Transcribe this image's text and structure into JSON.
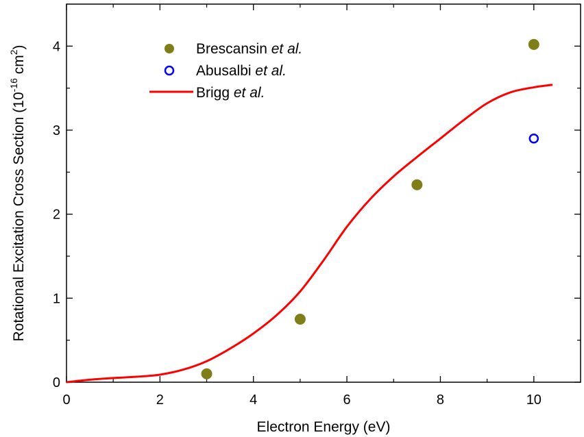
{
  "chart_data": {
    "type": "scatter",
    "xlabel": "Electron Energy (eV)",
    "ylabel": {
      "prefix": "Rotational Excitation Cross Section (10",
      "exp1": "-16",
      "mid": " cm",
      "exp2": "2",
      "suffix": ")"
    },
    "xlim": [
      0,
      11
    ],
    "ylim": [
      0,
      4.5
    ],
    "xticks": [
      0,
      2,
      4,
      6,
      8,
      10
    ],
    "yticks": [
      0,
      1,
      2,
      3,
      4
    ],
    "grid": false,
    "legend_position": "top-left",
    "series": [
      {
        "name": "Brescansin",
        "name_suffix": "et al.",
        "kind": "filled-circle",
        "color": "#7f7f1a",
        "x": [
          3,
          5,
          7.5,
          10
        ],
        "y": [
          0.1,
          0.75,
          2.35,
          4.02
        ]
      },
      {
        "name": "Abusalbi",
        "name_suffix": "et al.",
        "kind": "open-circle",
        "color": "#0000ff",
        "x": [
          10
        ],
        "y": [
          2.9
        ]
      },
      {
        "name": "Brigg",
        "name_suffix": "et al.",
        "kind": "line",
        "color": "#ff0000",
        "x": [
          0,
          0.5,
          1,
          1.5,
          2,
          2.5,
          3,
          3.5,
          4,
          4.5,
          5,
          5.5,
          6,
          6.5,
          7,
          7.5,
          8,
          8.5,
          9,
          9.5,
          10,
          10.4
        ],
        "y": [
          0,
          0.03,
          0.05,
          0.065,
          0.09,
          0.15,
          0.25,
          0.4,
          0.58,
          0.8,
          1.08,
          1.45,
          1.85,
          2.18,
          2.45,
          2.68,
          2.9,
          3.12,
          3.32,
          3.45,
          3.51,
          3.54
        ]
      }
    ]
  }
}
